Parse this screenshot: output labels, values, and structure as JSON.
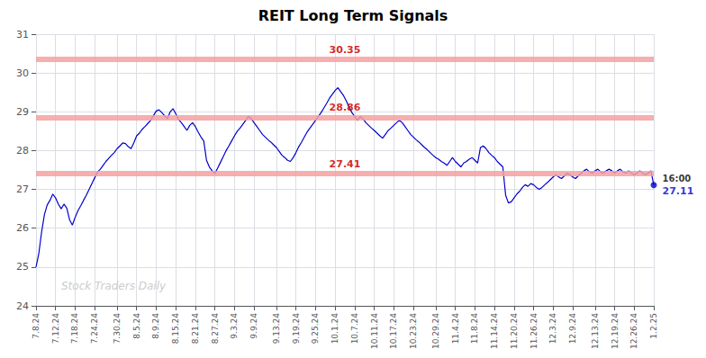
{
  "chart_data": {
    "type": "line",
    "title": "REIT Long Term Signals",
    "color": "#0000cc",
    "grid": true,
    "ylim": [
      24,
      31
    ],
    "yticks": [
      24,
      25,
      26,
      27,
      28,
      29,
      30,
      31
    ],
    "hlines": [
      {
        "y": 30.35,
        "label": "30.35",
        "color": "#f4a0a0",
        "label_color": "#cc0000"
      },
      {
        "y": 28.86,
        "label": "28.86",
        "color": "#f4a0a0",
        "label_color": "#cc0000"
      },
      {
        "y": 27.41,
        "label": "27.41",
        "color": "#f4a0a0",
        "label_color": "#cc0000"
      }
    ],
    "annotations": [
      {
        "text": "Stock Traders Daily",
        "kind": "watermark",
        "color": "#cccccc"
      },
      {
        "text": "16:00",
        "kind": "end",
        "color": "#000000"
      },
      {
        "text": "27.11",
        "kind": "end",
        "color": "#0000cc"
      }
    ],
    "categories": [
      "7.8.24",
      null,
      null,
      null,
      null,
      null,
      null,
      "7.12.24",
      null,
      null,
      null,
      null,
      null,
      null,
      "7.18.24",
      null,
      null,
      null,
      null,
      null,
      null,
      "7.24.24",
      null,
      null,
      null,
      null,
      null,
      null,
      null,
      "7.30.24",
      null,
      null,
      null,
      null,
      null,
      null,
      "8.5.24",
      null,
      null,
      null,
      null,
      null,
      null,
      "8.9.24",
      null,
      null,
      null,
      null,
      null,
      null,
      "8.15.24",
      null,
      null,
      null,
      null,
      null,
      null,
      "8.21.24",
      null,
      null,
      null,
      null,
      null,
      null,
      "8.27.24",
      null,
      null,
      null,
      null,
      null,
      null,
      "9.3.24",
      null,
      null,
      null,
      null,
      null,
      null,
      "9.9.24",
      null,
      null,
      null,
      null,
      null,
      null,
      null,
      "9.13.24",
      null,
      null,
      null,
      null,
      null,
      null,
      "9.19.24",
      null,
      null,
      null,
      null,
      null,
      null,
      "9.25.24",
      null,
      null,
      null,
      null,
      null,
      null,
      "10.1.24",
      null,
      null,
      null,
      null,
      null,
      null,
      "10.7.24",
      null,
      null,
      null,
      null,
      null,
      null,
      "10.11.24",
      null,
      null,
      null,
      null,
      null,
      null,
      "10.17.24",
      null,
      null,
      null,
      null,
      null,
      null,
      "10.23.24",
      null,
      null,
      null,
      null,
      null,
      null,
      null,
      "10.29.24",
      null,
      null,
      null,
      null,
      null,
      null,
      "11.4.24",
      null,
      null,
      null,
      null,
      null,
      null,
      "11.8.24",
      null,
      null,
      null,
      null,
      null,
      null,
      "11.14.24",
      null,
      null,
      null,
      null,
      null,
      null,
      "11.20.24",
      null,
      null,
      null,
      null,
      null,
      null,
      "11.26.24",
      null,
      null,
      null,
      null,
      null,
      null,
      "12.3.24",
      null,
      null,
      null,
      null,
      null,
      null,
      "12.9.24",
      null,
      null,
      null,
      null,
      null,
      null,
      null,
      "12.13.24",
      null,
      null,
      null,
      null,
      null,
      null,
      "12.19.24",
      null,
      null,
      null,
      null,
      null,
      null,
      "12.26.24",
      null,
      null,
      null,
      null,
      null,
      null,
      "1.2.25"
    ],
    "values": [
      25.0,
      25.35,
      25.9,
      26.35,
      26.6,
      26.72,
      26.88,
      26.78,
      26.62,
      26.5,
      26.62,
      26.52,
      26.22,
      26.08,
      26.28,
      26.45,
      26.58,
      26.72,
      26.85,
      27.0,
      27.15,
      27.3,
      27.45,
      27.52,
      27.62,
      27.72,
      27.8,
      27.88,
      27.95,
      28.05,
      28.12,
      28.2,
      28.18,
      28.1,
      28.05,
      28.2,
      28.38,
      28.45,
      28.55,
      28.62,
      28.7,
      28.78,
      28.9,
      29.02,
      29.05,
      28.98,
      28.9,
      28.82,
      29.0,
      29.08,
      28.95,
      28.8,
      28.72,
      28.62,
      28.52,
      28.65,
      28.72,
      28.62,
      28.48,
      28.35,
      28.25,
      27.75,
      27.58,
      27.48,
      27.41,
      27.55,
      27.7,
      27.85,
      28.0,
      28.12,
      28.25,
      28.38,
      28.5,
      28.58,
      28.68,
      28.78,
      28.88,
      28.82,
      28.72,
      28.62,
      28.52,
      28.42,
      28.35,
      28.28,
      28.22,
      28.15,
      28.08,
      27.98,
      27.88,
      27.82,
      27.75,
      27.72,
      27.82,
      27.95,
      28.1,
      28.22,
      28.35,
      28.48,
      28.58,
      28.68,
      28.78,
      28.88,
      28.98,
      29.1,
      29.22,
      29.35,
      29.45,
      29.55,
      29.62,
      29.52,
      29.42,
      29.28,
      29.12,
      28.98,
      28.88,
      28.78,
      28.88,
      28.82,
      28.72,
      28.65,
      28.58,
      28.52,
      28.45,
      28.38,
      28.32,
      28.42,
      28.52,
      28.58,
      28.65,
      28.72,
      28.78,
      28.72,
      28.62,
      28.52,
      28.42,
      28.35,
      28.28,
      28.22,
      28.15,
      28.08,
      28.02,
      27.95,
      27.88,
      27.82,
      27.78,
      27.72,
      27.68,
      27.62,
      27.72,
      27.82,
      27.72,
      27.65,
      27.58,
      27.68,
      27.72,
      27.78,
      27.82,
      27.75,
      27.68,
      28.08,
      28.12,
      28.05,
      27.95,
      27.88,
      27.82,
      27.72,
      27.65,
      27.58,
      26.85,
      26.65,
      26.68,
      26.78,
      26.88,
      26.95,
      27.05,
      27.12,
      27.08,
      27.15,
      27.12,
      27.05,
      27.0,
      27.05,
      27.12,
      27.18,
      27.25,
      27.32,
      27.38,
      27.32,
      27.28,
      27.35,
      27.42,
      27.38,
      27.32,
      27.28,
      27.35,
      27.42,
      27.48,
      27.52,
      27.45,
      27.42,
      27.48,
      27.52,
      27.45,
      27.42,
      27.48,
      27.52,
      27.48,
      27.42,
      27.48,
      27.52,
      27.45,
      27.42,
      27.48,
      27.42,
      27.38,
      27.42,
      27.48,
      27.42,
      27.38,
      27.42,
      27.48,
      27.11
    ]
  }
}
